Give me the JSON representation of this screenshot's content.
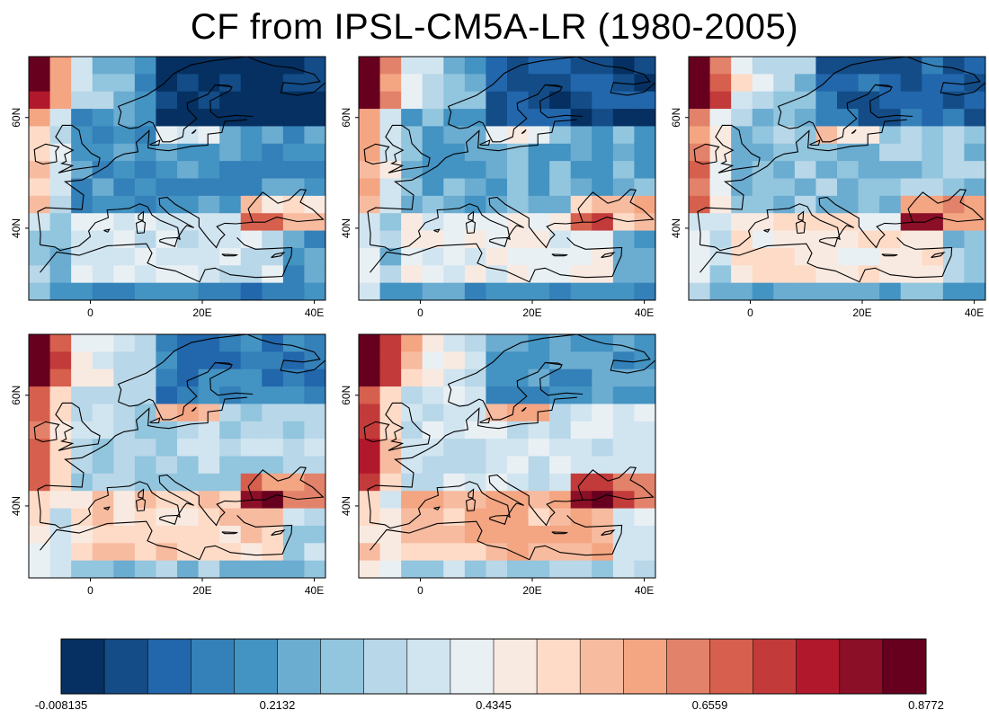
{
  "page": {
    "title": "CF from IPSL-CM5A-LR (1980-2005)"
  },
  "chart_data": {
    "type": "heatmap",
    "title": "CF from IPSL-CM5A-LR (1980-2005)",
    "panel_count": 5,
    "x_tick_labels": [
      "0",
      "20E",
      "40E"
    ],
    "y_tick_labels": [
      "40N",
      "60N"
    ],
    "xlim": [
      -11,
      42
    ],
    "ylim": [
      27,
      71
    ],
    "colorbar": {
      "tick_labels": [
        "-0.008135",
        "0.2132",
        "0.4345",
        "0.6559",
        "0.8772"
      ],
      "min": -0.008135,
      "max": 0.8772,
      "colors": [
        "#053061",
        "#134c87",
        "#2266ac",
        "#3480b9",
        "#4393c3",
        "#6bacd1",
        "#92c5de",
        "#b8d7e8",
        "#d1e5f0",
        "#e9f0f4",
        "#f9eae1",
        "#fddbc7",
        "#f7bba0",
        "#f4a582",
        "#e3826a",
        "#d6604d",
        "#c23b3a",
        "#b2182b",
        "#8b0f26",
        "#67001f"
      ]
    }
  }
}
